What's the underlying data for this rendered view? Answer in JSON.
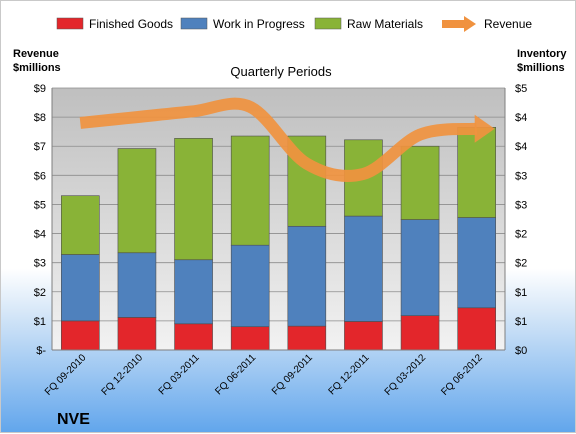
{
  "chart_data": {
    "type": "bar",
    "stacked": true,
    "title": "Quarterly Periods",
    "company": "NVE",
    "left_axis_title": [
      "Revenue",
      "$millions"
    ],
    "right_axis_title": [
      "Inventory",
      "$millions"
    ],
    "categories": [
      "FQ 09-2010",
      "FQ 12-2010",
      "FQ 03-2011",
      "FQ 06-2011",
      "FQ 09-2011",
      "FQ 12-2011",
      "FQ 03-2012",
      "FQ 06-2012"
    ],
    "left_ticks": [
      "$-",
      "$1",
      "$2",
      "$3",
      "$4",
      "$5",
      "$6",
      "$7",
      "$8",
      "$9"
    ],
    "right_ticks": [
      "$0",
      "$1",
      "$1",
      "$2",
      "$2",
      "$3",
      "$3",
      "$4",
      "$4",
      "$5"
    ],
    "ylim": [
      0,
      9
    ],
    "right_ylim": [
      0,
      5
    ],
    "grid": true,
    "legend_position": "top",
    "series": [
      {
        "name": "Finished Goods",
        "color": "#e3262b",
        "values": [
          1.0,
          1.12,
          0.9,
          0.8,
          0.82,
          0.98,
          1.18,
          1.45
        ]
      },
      {
        "name": "Work in Progress",
        "color": "#4f81bd",
        "values": [
          2.28,
          2.22,
          2.2,
          2.8,
          3.43,
          3.62,
          3.3,
          3.1
        ]
      },
      {
        "name": "Raw Materials",
        "color": "#89b337",
        "values": [
          2.02,
          3.58,
          4.17,
          3.75,
          3.1,
          2.62,
          2.52,
          3.1
        ]
      }
    ],
    "line_series": {
      "name": "Revenue",
      "color": "#f0923f",
      "values": [
        7.8,
        8.0,
        8.2,
        8.35,
        6.4,
        6.05,
        7.4,
        7.6
      ]
    }
  }
}
